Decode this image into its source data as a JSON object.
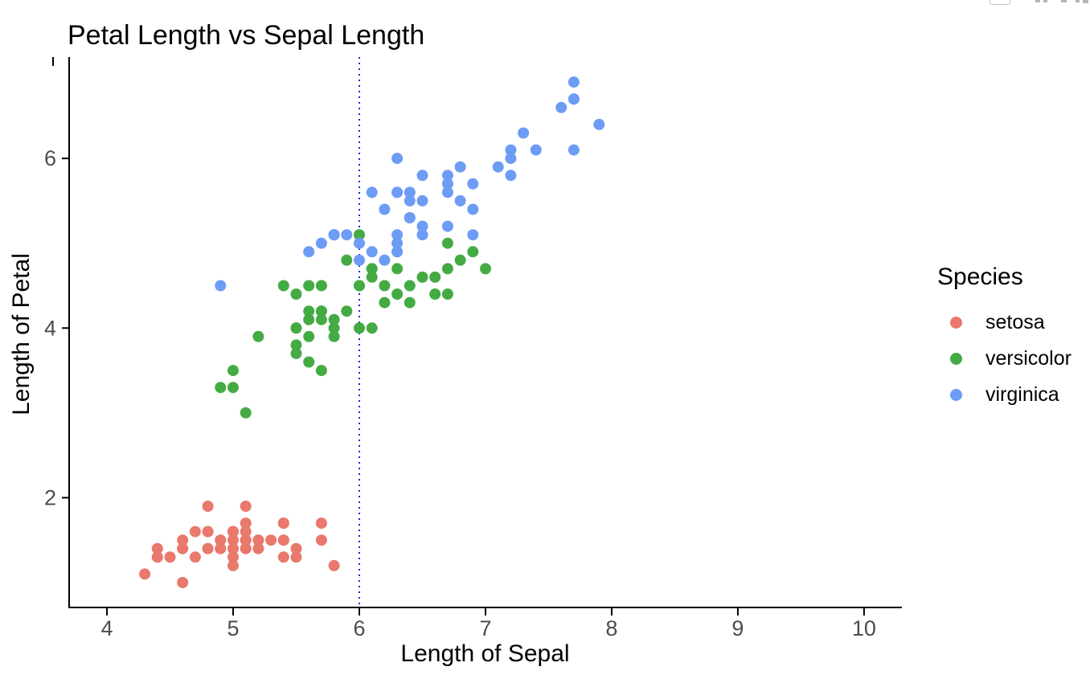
{
  "chart_data": {
    "type": "scatter",
    "title": "Petal Length vs Sepal Length",
    "xlabel": "Length of Sepal",
    "ylabel": "Length of Petal",
    "x_ticks": [
      4,
      5,
      6,
      7,
      8,
      9,
      10
    ],
    "y_ticks": [
      2,
      4,
      6
    ],
    "xlim": [
      3.694,
      10.3
    ],
    "ylim": [
      0.706,
      7.195
    ],
    "grid": false,
    "point_radius_px": 7,
    "axis_color": "#000000",
    "tick_label_color": "#4d4d4d",
    "vline": {
      "x": 6,
      "linetype": "dotted",
      "color": "#2222dd"
    },
    "legend": {
      "title": "Species",
      "position": "right",
      "entries": [
        {
          "label": "setosa",
          "color": "#e8796c"
        },
        {
          "label": "versicolor",
          "color": "#44ab44"
        },
        {
          "label": "virginica",
          "color": "#6d9cf5"
        }
      ]
    },
    "series": [
      {
        "name": "setosa",
        "color": "#e8796c",
        "points": [
          [
            5.1,
            1.4
          ],
          [
            4.9,
            1.4
          ],
          [
            4.7,
            1.3
          ],
          [
            4.6,
            1.5
          ],
          [
            5.0,
            1.4
          ],
          [
            5.4,
            1.7
          ],
          [
            4.6,
            1.4
          ],
          [
            5.0,
            1.5
          ],
          [
            4.4,
            1.4
          ],
          [
            4.9,
            1.5
          ],
          [
            5.4,
            1.5
          ],
          [
            4.8,
            1.6
          ],
          [
            4.8,
            1.4
          ],
          [
            4.3,
            1.1
          ],
          [
            5.8,
            1.2
          ],
          [
            5.7,
            1.5
          ],
          [
            5.4,
            1.3
          ],
          [
            5.1,
            1.4
          ],
          [
            5.7,
            1.7
          ],
          [
            5.1,
            1.5
          ],
          [
            5.4,
            1.7
          ],
          [
            5.1,
            1.5
          ],
          [
            4.6,
            1.0
          ],
          [
            5.1,
            1.7
          ],
          [
            4.8,
            1.9
          ],
          [
            5.0,
            1.6
          ],
          [
            5.0,
            1.6
          ],
          [
            5.2,
            1.5
          ],
          [
            5.2,
            1.4
          ],
          [
            4.7,
            1.6
          ],
          [
            4.8,
            1.6
          ],
          [
            5.4,
            1.5
          ],
          [
            5.2,
            1.5
          ],
          [
            5.5,
            1.4
          ],
          [
            4.9,
            1.5
          ],
          [
            5.0,
            1.2
          ],
          [
            5.5,
            1.3
          ],
          [
            4.9,
            1.4
          ],
          [
            4.4,
            1.3
          ],
          [
            5.1,
            1.5
          ],
          [
            5.0,
            1.3
          ],
          [
            4.5,
            1.3
          ],
          [
            4.4,
            1.3
          ],
          [
            5.0,
            1.6
          ],
          [
            5.1,
            1.9
          ],
          [
            4.8,
            1.4
          ],
          [
            5.1,
            1.6
          ],
          [
            4.6,
            1.4
          ],
          [
            5.3,
            1.5
          ],
          [
            5.0,
            1.4
          ]
        ]
      },
      {
        "name": "versicolor",
        "color": "#44ab44",
        "points": [
          [
            7.0,
            4.7
          ],
          [
            6.4,
            4.5
          ],
          [
            6.9,
            4.9
          ],
          [
            5.5,
            4.0
          ],
          [
            6.5,
            4.6
          ],
          [
            5.7,
            4.5
          ],
          [
            6.3,
            4.7
          ],
          [
            4.9,
            3.3
          ],
          [
            6.6,
            4.6
          ],
          [
            5.2,
            3.9
          ],
          [
            5.0,
            3.5
          ],
          [
            5.9,
            4.2
          ],
          [
            6.0,
            4.0
          ],
          [
            6.1,
            4.7
          ],
          [
            5.6,
            3.6
          ],
          [
            6.7,
            4.4
          ],
          [
            5.6,
            4.5
          ],
          [
            5.8,
            4.1
          ],
          [
            6.2,
            4.5
          ],
          [
            5.6,
            3.9
          ],
          [
            5.9,
            4.8
          ],
          [
            6.1,
            4.0
          ],
          [
            6.3,
            4.9
          ],
          [
            6.1,
            4.7
          ],
          [
            6.4,
            4.3
          ],
          [
            6.6,
            4.4
          ],
          [
            6.8,
            4.8
          ],
          [
            6.7,
            5.0
          ],
          [
            6.0,
            4.5
          ],
          [
            5.7,
            3.5
          ],
          [
            5.5,
            3.8
          ],
          [
            5.5,
            3.7
          ],
          [
            5.8,
            3.9
          ],
          [
            6.0,
            5.1
          ],
          [
            5.4,
            4.5
          ],
          [
            6.0,
            4.5
          ],
          [
            6.7,
            4.7
          ],
          [
            6.3,
            4.4
          ],
          [
            5.6,
            4.1
          ],
          [
            5.5,
            4.0
          ],
          [
            5.5,
            4.4
          ],
          [
            6.1,
            4.6
          ],
          [
            5.8,
            4.0
          ],
          [
            5.0,
            3.3
          ],
          [
            5.6,
            4.2
          ],
          [
            5.7,
            4.2
          ],
          [
            5.7,
            4.2
          ],
          [
            6.2,
            4.3
          ],
          [
            5.1,
            3.0
          ],
          [
            5.7,
            4.1
          ]
        ]
      },
      {
        "name": "virginica",
        "color": "#6d9cf5",
        "points": [
          [
            6.3,
            6.0
          ],
          [
            5.8,
            5.1
          ],
          [
            7.1,
            5.9
          ],
          [
            6.3,
            5.6
          ],
          [
            6.5,
            5.8
          ],
          [
            7.6,
            6.6
          ],
          [
            4.9,
            4.5
          ],
          [
            7.3,
            6.3
          ],
          [
            6.7,
            5.8
          ],
          [
            7.2,
            6.1
          ],
          [
            6.5,
            5.1
          ],
          [
            6.4,
            5.3
          ],
          [
            6.8,
            5.5
          ],
          [
            5.7,
            5.0
          ],
          [
            5.8,
            5.1
          ],
          [
            6.4,
            5.3
          ],
          [
            6.5,
            5.5
          ],
          [
            7.7,
            6.7
          ],
          [
            7.7,
            6.9
          ],
          [
            6.0,
            5.0
          ],
          [
            6.9,
            5.7
          ],
          [
            5.6,
            4.9
          ],
          [
            7.7,
            6.7
          ],
          [
            6.3,
            4.9
          ],
          [
            6.7,
            5.7
          ],
          [
            7.2,
            6.0
          ],
          [
            6.2,
            4.8
          ],
          [
            6.1,
            4.9
          ],
          [
            6.4,
            5.6
          ],
          [
            7.2,
            5.8
          ],
          [
            7.4,
            6.1
          ],
          [
            7.9,
            6.4
          ],
          [
            6.4,
            5.6
          ],
          [
            6.3,
            5.1
          ],
          [
            6.1,
            5.6
          ],
          [
            7.7,
            6.1
          ],
          [
            6.3,
            5.6
          ],
          [
            6.4,
            5.5
          ],
          [
            6.0,
            4.8
          ],
          [
            6.9,
            5.4
          ],
          [
            6.7,
            5.6
          ],
          [
            6.9,
            5.1
          ],
          [
            5.8,
            5.1
          ],
          [
            6.8,
            5.9
          ],
          [
            6.7,
            5.7
          ],
          [
            6.7,
            5.2
          ],
          [
            6.3,
            5.0
          ],
          [
            6.5,
            5.2
          ],
          [
            6.2,
            5.4
          ],
          [
            5.9,
            5.1
          ]
        ]
      }
    ]
  },
  "artifacts": {
    "top_right_icons": "cropped-toolbar-icon-fragments",
    "cursor": "text-cursor-artifact"
  }
}
